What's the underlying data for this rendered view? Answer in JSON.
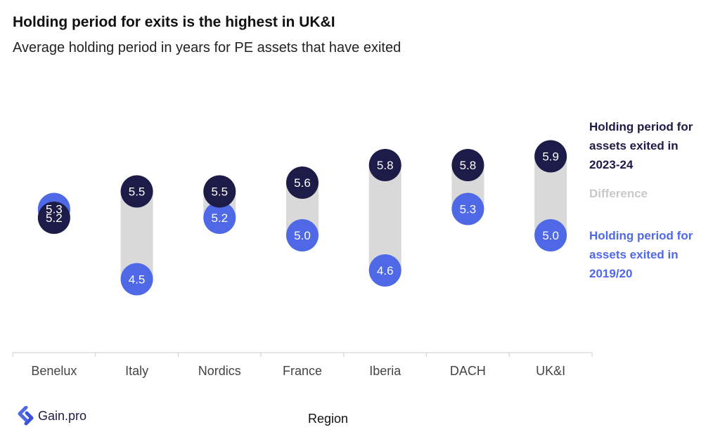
{
  "header": {
    "title": "Holding period for exits is the highest in UK&I",
    "subtitle": "Average holding period in years for PE assets that have exited"
  },
  "legend": {
    "recent": "Holding period for assets exited in 2023-24",
    "difference": "Difference",
    "earlier": "Holding period for assets exited in 2019/20"
  },
  "brand": {
    "name": "Gain.pro"
  },
  "colors": {
    "recent": "#1d1b47",
    "earlier": "#4e68e6",
    "difference": "#d9d9d9",
    "axis": "#cccccc"
  },
  "chart_data": {
    "type": "dumbbell",
    "title": "Holding period for exits is the highest in UK&I",
    "subtitle": "Average holding period in years for PE assets that have exited",
    "xlabel": "Region",
    "categories": [
      "Benelux",
      "Italy",
      "Nordics",
      "France",
      "Iberia",
      "DACH",
      "UK&I"
    ],
    "series": [
      {
        "name": "Holding period for assets exited in 2023-24",
        "values": [
          5.2,
          5.5,
          5.5,
          5.6,
          5.8,
          5.8,
          5.9
        ]
      },
      {
        "name": "Holding period for assets exited in 2019/20",
        "values": [
          5.3,
          4.5,
          5.2,
          5.0,
          4.6,
          5.3,
          5.0
        ]
      }
    ],
    "grid": false,
    "legend_position": "right"
  }
}
